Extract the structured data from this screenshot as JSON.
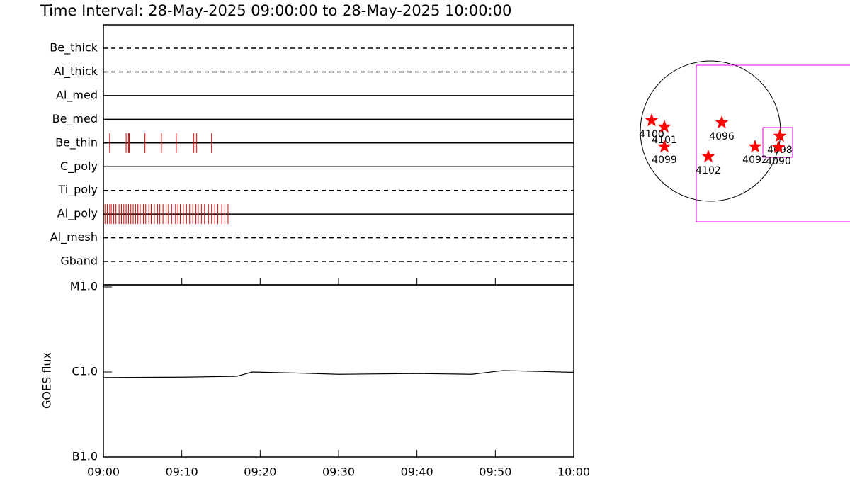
{
  "chart_data": [
    {
      "type": "timeline",
      "title": "Time Interval: 28-May-2025 09:00:00 to 28-May-2025 10:00:00",
      "color": "#dd0000",
      "xlim": [
        0,
        60
      ],
      "filters": [
        {
          "name": "Be_thick",
          "style": "dashed",
          "values": []
        },
        {
          "name": "Al_thick",
          "style": "dashed",
          "values": []
        },
        {
          "name": "Al_med",
          "style": "solid",
          "values": []
        },
        {
          "name": "Be_med",
          "style": "solid",
          "values": []
        },
        {
          "name": "Be_thin",
          "style": "solid",
          "values": [
            0.8,
            2.9,
            3.2,
            3.3,
            5.3,
            7.4,
            9.3,
            11.5,
            11.7,
            11.9,
            13.8
          ]
        },
        {
          "name": "C_poly",
          "style": "solid",
          "values": []
        },
        {
          "name": "Ti_poly",
          "style": "dashed",
          "values": []
        },
        {
          "name": "Al_poly",
          "style": "solid",
          "values": [
            0.2,
            0.5,
            0.8,
            1.0,
            1.3,
            1.6,
            2.0,
            2.3,
            2.6,
            2.9,
            3.2,
            3.5,
            3.8,
            4.1,
            4.4,
            4.7,
            5.1,
            5.4,
            5.8,
            6.1,
            6.5,
            6.9,
            7.2,
            7.6,
            8.0,
            8.3,
            8.7,
            9.2,
            9.5,
            9.8,
            10.2,
            10.6,
            11.0,
            11.4,
            11.8,
            12.1,
            12.5,
            12.9,
            13.4,
            13.8,
            14.2,
            14.6,
            15.1,
            15.5,
            15.9
          ]
        },
        {
          "name": "Al_mesh",
          "style": "dashed",
          "values": []
        },
        {
          "name": "Gband",
          "style": "dashed",
          "values": []
        }
      ]
    },
    {
      "type": "line",
      "ylabel": "GOES flux",
      "log": true,
      "color": "#000000",
      "x": [
        0,
        10,
        17,
        19,
        25,
        30,
        40,
        47,
        51,
        55,
        60
      ],
      "values": [
        8.6e-07,
        8.7e-07,
        8.9e-07,
        1e-06,
        9.7e-07,
        9.4e-07,
        9.6e-07,
        9.4e-07,
        1.04e-06,
        1.02e-06,
        9.9e-07
      ],
      "xlim": [
        0,
        60
      ],
      "xticks": [
        {
          "value": 0,
          "label": "09:00"
        },
        {
          "value": 10,
          "label": "09:10"
        },
        {
          "value": 20,
          "label": "09:20"
        },
        {
          "value": 30,
          "label": "09:30"
        },
        {
          "value": 40,
          "label": "09:40"
        },
        {
          "value": 50,
          "label": "09:50"
        },
        {
          "value": 60,
          "label": "10:00"
        }
      ],
      "ylim": [
        1e-07,
        1e-05
      ],
      "yticks": [
        {
          "value": 1e-07,
          "label": "B1.0"
        },
        {
          "value": 1e-06,
          "label": "C1.0"
        },
        {
          "value": 1e-05,
          "label": "M1.0"
        }
      ]
    },
    {
      "type": "map",
      "color": "#ff0000",
      "labels": [
        "4100",
        "4101",
        "4099",
        "4096",
        "4102",
        "4092",
        "4098",
        "4090"
      ]
    }
  ]
}
